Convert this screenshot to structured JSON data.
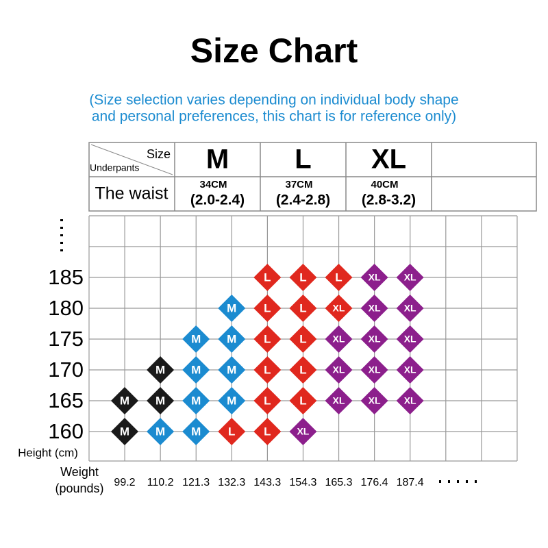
{
  "header": {
    "title": "Size Chart",
    "subtitle": [
      "(Size selection varies depending on individual body shape",
      "and personal preferences, this chart is for reference only)"
    ]
  },
  "size_table": {
    "size_label": "Size",
    "row_label": "Underpants",
    "waist_label": "The waist",
    "sizes": [
      {
        "name": "M",
        "waist": "34CM",
        "range": "(2.0-2.4)"
      },
      {
        "name": "L",
        "waist": "37CM",
        "range": "(2.4-2.8)"
      },
      {
        "name": "XL",
        "waist": "40CM",
        "range": "(2.8-3.2)"
      }
    ]
  },
  "grid": {
    "y_label": "Height (cm)",
    "x_label": [
      "Weight",
      "(pounds)"
    ],
    "y_more": ".....",
    "x_more": ".....",
    "weights": [
      "99.2",
      "110.2",
      "121.3",
      "132.3",
      "143.3",
      "154.3",
      "165.3",
      "176.4",
      "187.4"
    ],
    "rows": [
      {
        "height": "185",
        "cells": [
          null,
          null,
          null,
          null,
          {
            "label": "L",
            "color": "#e0281e"
          },
          {
            "label": "L",
            "color": "#e0281e"
          },
          {
            "label": "L",
            "color": "#e0281e"
          },
          {
            "label": "XL",
            "color": "#8c1f8c"
          },
          {
            "label": "XL",
            "color": "#8c1f8c"
          }
        ]
      },
      {
        "height": "180",
        "cells": [
          null,
          null,
          null,
          {
            "label": "M",
            "color": "#1b8bd0"
          },
          {
            "label": "L",
            "color": "#e0281e"
          },
          {
            "label": "L",
            "color": "#e0281e"
          },
          {
            "label": "XL",
            "color": "#e0281e"
          },
          {
            "label": "XL",
            "color": "#8c1f8c"
          },
          {
            "label": "XL",
            "color": "#8c1f8c"
          }
        ]
      },
      {
        "height": "175",
        "cells": [
          null,
          null,
          {
            "label": "M",
            "color": "#1b8bd0"
          },
          {
            "label": "M",
            "color": "#1b8bd0"
          },
          {
            "label": "L",
            "color": "#e0281e"
          },
          {
            "label": "L",
            "color": "#e0281e"
          },
          {
            "label": "XL",
            "color": "#8c1f8c"
          },
          {
            "label": "XL",
            "color": "#8c1f8c"
          },
          {
            "label": "XL",
            "color": "#8c1f8c"
          }
        ]
      },
      {
        "height": "170",
        "cells": [
          null,
          {
            "label": "M",
            "color": "#1a1a1a"
          },
          {
            "label": "M",
            "color": "#1b8bd0"
          },
          {
            "label": "M",
            "color": "#1b8bd0"
          },
          {
            "label": "L",
            "color": "#e0281e"
          },
          {
            "label": "L",
            "color": "#e0281e"
          },
          {
            "label": "XL",
            "color": "#8c1f8c"
          },
          {
            "label": "XL",
            "color": "#8c1f8c"
          },
          {
            "label": "XL",
            "color": "#8c1f8c"
          }
        ]
      },
      {
        "height": "165",
        "cells": [
          {
            "label": "M",
            "color": "#1a1a1a"
          },
          {
            "label": "M",
            "color": "#1a1a1a"
          },
          {
            "label": "M",
            "color": "#1b8bd0"
          },
          {
            "label": "M",
            "color": "#1b8bd0"
          },
          {
            "label": "L",
            "color": "#e0281e"
          },
          {
            "label": "L",
            "color": "#e0281e"
          },
          {
            "label": "XL",
            "color": "#8c1f8c"
          },
          {
            "label": "XL",
            "color": "#8c1f8c"
          },
          {
            "label": "XL",
            "color": "#8c1f8c"
          }
        ]
      },
      {
        "height": "160",
        "cells": [
          {
            "label": "M",
            "color": "#1a1a1a"
          },
          {
            "label": "M",
            "color": "#1b8bd0"
          },
          {
            "label": "M",
            "color": "#1b8bd0"
          },
          {
            "label": "L",
            "color": "#e0281e"
          },
          {
            "label": "L",
            "color": "#e0281e"
          },
          {
            "label": "XL",
            "color": "#8c1f8c"
          },
          null,
          null,
          null
        ]
      }
    ]
  }
}
